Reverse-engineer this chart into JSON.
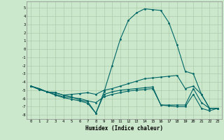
{
  "xlabel": "Humidex (Indice chaleur)",
  "background_color": "#cce8cc",
  "grid_color": "#aaccaa",
  "line_color": "#006666",
  "xlim": [
    -0.5,
    23.5
  ],
  "ylim": [
    -8.5,
    5.8
  ],
  "yticks": [
    5,
    4,
    3,
    2,
    1,
    0,
    -1,
    -2,
    -3,
    -4,
    -5,
    -6,
    -7,
    -8
  ],
  "xticks": [
    0,
    1,
    2,
    3,
    4,
    5,
    6,
    7,
    8,
    9,
    10,
    11,
    12,
    13,
    14,
    15,
    16,
    17,
    18,
    19,
    20,
    21,
    22,
    23
  ],
  "line1": [
    -4.5,
    -4.8,
    -5.2,
    -5.3,
    -5.6,
    -5.8,
    -6.2,
    -6.4,
    -7.8,
    -5.2,
    -2.0,
    1.2,
    3.5,
    4.4,
    4.9,
    4.8,
    4.7,
    3.2,
    0.5,
    -2.7,
    -3.0,
    -5.5,
    -7.2,
    -7.2
  ],
  "line2": [
    -4.5,
    -4.8,
    -5.2,
    -5.3,
    -5.6,
    -5.5,
    -5.4,
    -5.3,
    -5.5,
    -5.0,
    -4.8,
    -4.5,
    -4.2,
    -3.9,
    -3.6,
    -3.5,
    -3.4,
    -3.3,
    -3.2,
    -4.8,
    -4.5,
    -5.5,
    -7.2,
    -7.2
  ],
  "line3": [
    -4.5,
    -4.9,
    -5.2,
    -5.5,
    -5.8,
    -5.9,
    -6.0,
    -6.3,
    -6.5,
    -5.8,
    -5.5,
    -5.3,
    -5.1,
    -5.0,
    -4.9,
    -4.8,
    -6.8,
    -6.8,
    -6.8,
    -6.8,
    -4.8,
    -6.5,
    -7.2,
    -7.2
  ],
  "line4": [
    -4.5,
    -4.9,
    -5.2,
    -5.6,
    -5.9,
    -6.1,
    -6.3,
    -6.6,
    -7.8,
    -5.5,
    -5.2,
    -5.0,
    -4.9,
    -4.8,
    -4.7,
    -4.6,
    -6.8,
    -6.9,
    -7.0,
    -7.0,
    -5.5,
    -7.2,
    -7.5,
    -7.2
  ]
}
